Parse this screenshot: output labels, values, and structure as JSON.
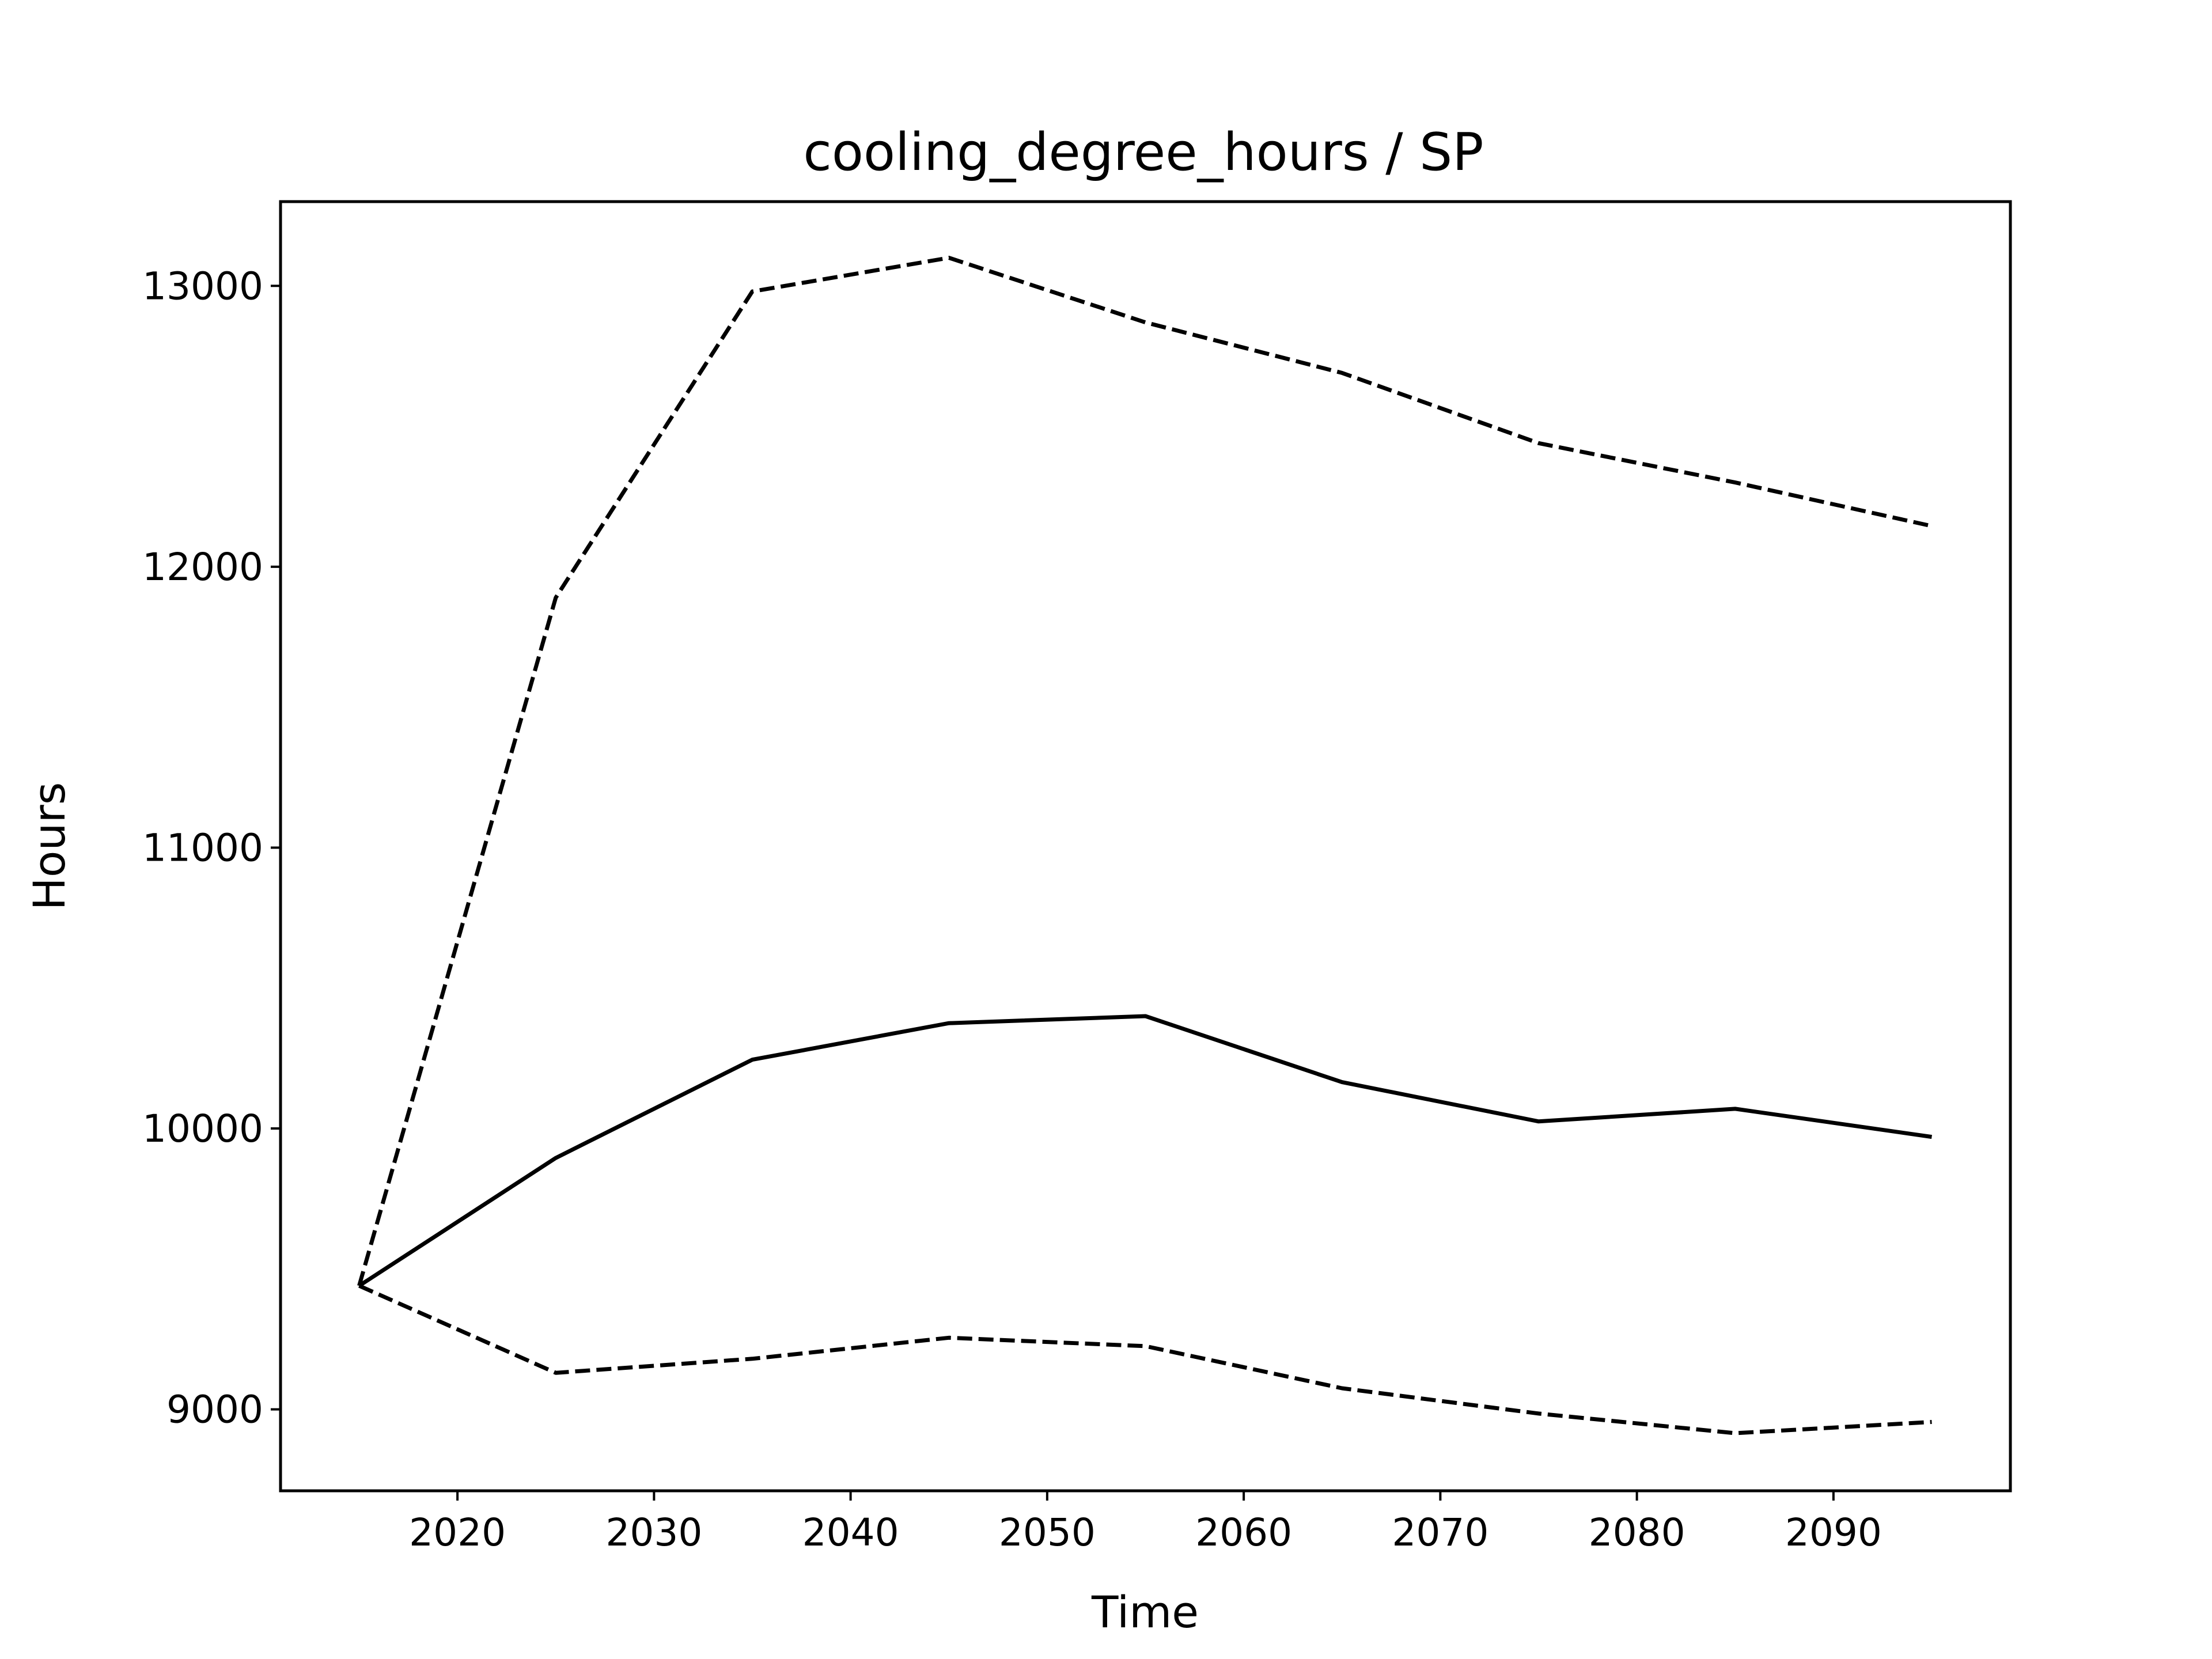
{
  "chart_data": {
    "type": "line",
    "title": "cooling_degree_hours / SP",
    "xlabel": "Time",
    "ylabel": "Hours",
    "xlim": [
      2011,
      2099
    ],
    "ylim": [
      8710,
      13300
    ],
    "xticks": [
      2020,
      2030,
      2040,
      2050,
      2060,
      2070,
      2080,
      2090
    ],
    "yticks": [
      9000,
      10000,
      11000,
      12000,
      13000
    ],
    "grid": false,
    "legend": "none",
    "x": [
      2015,
      2025,
      2035,
      2045,
      2055,
      2065,
      2075,
      2085,
      2095
    ],
    "series": [
      {
        "style": "solid",
        "color": "#000000",
        "values": [
          9440,
          9895,
          10245,
          10375,
          10400,
          10165,
          10025,
          10070,
          9970
        ]
      },
      {
        "style": "dashed",
        "color": "#000000",
        "values": [
          9440,
          11890,
          12980,
          13100,
          12870,
          12690,
          12440,
          12300,
          12145
        ]
      },
      {
        "style": "dashed",
        "color": "#000000",
        "values": [
          9440,
          9130,
          9180,
          9255,
          9225,
          9075,
          8985,
          8915,
          8955
        ]
      }
    ]
  }
}
